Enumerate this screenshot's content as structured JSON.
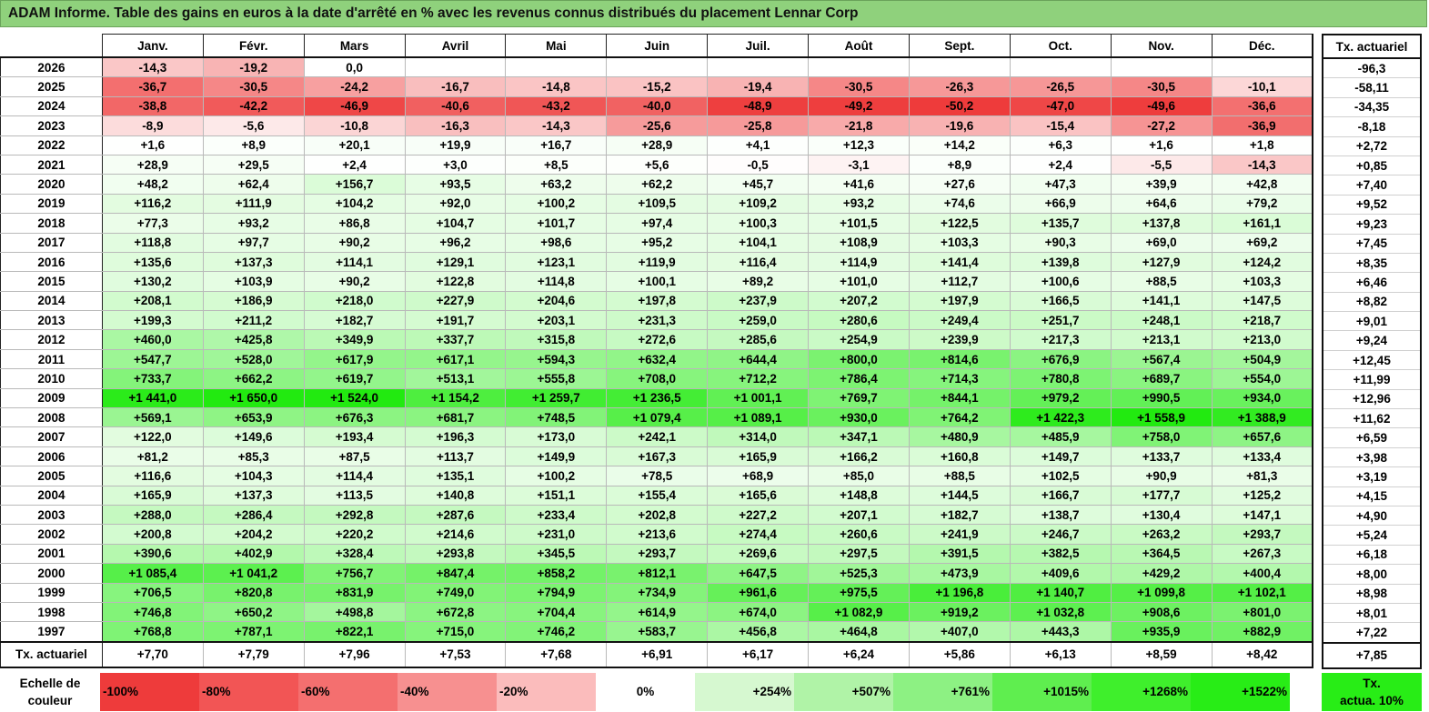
{
  "title": "ADAM Informe. Table des gains en euros à la date d'arrêté en % avec les revenus connus distribués du placement Lennar Corp",
  "months": [
    "Janv.",
    "Févr.",
    "Mars",
    "Avril",
    "Mai",
    "Juin",
    "Juil.",
    "Août",
    "Sept.",
    "Oct.",
    "Nov.",
    "Déc."
  ],
  "side_header": "Tx. actuariel",
  "rows": [
    {
      "year": "2026",
      "values": [
        "-14,3",
        "-19,2",
        "0,0",
        "",
        "",
        "",
        "",
        "",
        "",
        "",
        "",
        ""
      ],
      "tx": "-96,3"
    },
    {
      "year": "2025",
      "values": [
        "-36,7",
        "-30,5",
        "-24,2",
        "-16,7",
        "-14,8",
        "-15,2",
        "-19,4",
        "-30,5",
        "-26,3",
        "-26,5",
        "-30,5",
        "-10,1"
      ],
      "tx": "-58,11"
    },
    {
      "year": "2024",
      "values": [
        "-38,8",
        "-42,2",
        "-46,9",
        "-40,6",
        "-43,2",
        "-40,0",
        "-48,9",
        "-49,2",
        "-50,2",
        "-47,0",
        "-49,6",
        "-36,6"
      ],
      "tx": "-34,35"
    },
    {
      "year": "2023",
      "values": [
        "-8,9",
        "-5,6",
        "-10,8",
        "-16,3",
        "-14,3",
        "-25,6",
        "-25,8",
        "-21,8",
        "-19,6",
        "-15,4",
        "-27,2",
        "-36,9"
      ],
      "tx": "-8,18"
    },
    {
      "year": "2022",
      "values": [
        "+1,6",
        "+8,9",
        "+20,1",
        "+19,9",
        "+16,7",
        "+28,9",
        "+4,1",
        "+12,3",
        "+14,2",
        "+6,3",
        "+1,6",
        "+1,8"
      ],
      "tx": "+2,72"
    },
    {
      "year": "2021",
      "values": [
        "+28,9",
        "+29,5",
        "+2,4",
        "+3,0",
        "+8,5",
        "+5,6",
        "-0,5",
        "-3,1",
        "+8,9",
        "+2,4",
        "-5,5",
        "-14,3"
      ],
      "tx": "+0,85"
    },
    {
      "year": "2020",
      "values": [
        "+48,2",
        "+62,4",
        "+156,7",
        "+93,5",
        "+63,2",
        "+62,2",
        "+45,7",
        "+41,6",
        "+27,6",
        "+47,3",
        "+39,9",
        "+42,8"
      ],
      "tx": "+7,40"
    },
    {
      "year": "2019",
      "values": [
        "+116,2",
        "+111,9",
        "+104,2",
        "+92,0",
        "+100,2",
        "+109,5",
        "+109,2",
        "+93,2",
        "+74,6",
        "+66,9",
        "+64,6",
        "+79,2"
      ],
      "tx": "+9,52"
    },
    {
      "year": "2018",
      "values": [
        "+77,3",
        "+93,2",
        "+86,8",
        "+104,7",
        "+101,7",
        "+97,4",
        "+100,3",
        "+101,5",
        "+122,5",
        "+135,7",
        "+137,8",
        "+161,1"
      ],
      "tx": "+9,23"
    },
    {
      "year": "2017",
      "values": [
        "+118,8",
        "+97,7",
        "+90,2",
        "+96,2",
        "+98,6",
        "+95,2",
        "+104,1",
        "+108,9",
        "+103,3",
        "+90,3",
        "+69,0",
        "+69,2"
      ],
      "tx": "+7,45"
    },
    {
      "year": "2016",
      "values": [
        "+135,6",
        "+137,3",
        "+114,1",
        "+129,1",
        "+123,1",
        "+119,9",
        "+116,4",
        "+114,9",
        "+141,4",
        "+139,8",
        "+127,9",
        "+124,2"
      ],
      "tx": "+8,35"
    },
    {
      "year": "2015",
      "values": [
        "+130,2",
        "+103,9",
        "+90,2",
        "+122,8",
        "+114,8",
        "+100,1",
        "+89,2",
        "+101,0",
        "+112,7",
        "+100,6",
        "+88,5",
        "+103,3"
      ],
      "tx": "+6,46"
    },
    {
      "year": "2014",
      "values": [
        "+208,1",
        "+186,9",
        "+218,0",
        "+227,9",
        "+204,6",
        "+197,8",
        "+237,9",
        "+207,2",
        "+197,9",
        "+166,5",
        "+141,1",
        "+147,5"
      ],
      "tx": "+8,82"
    },
    {
      "year": "2013",
      "values": [
        "+199,3",
        "+211,2",
        "+182,7",
        "+191,7",
        "+203,1",
        "+231,3",
        "+259,0",
        "+280,6",
        "+249,4",
        "+251,7",
        "+248,1",
        "+218,7"
      ],
      "tx": "+9,01"
    },
    {
      "year": "2012",
      "values": [
        "+460,0",
        "+425,8",
        "+349,9",
        "+337,7",
        "+315,8",
        "+272,6",
        "+285,6",
        "+254,9",
        "+239,9",
        "+217,3",
        "+213,1",
        "+213,0"
      ],
      "tx": "+9,24"
    },
    {
      "year": "2011",
      "values": [
        "+547,7",
        "+528,0",
        "+617,9",
        "+617,1",
        "+594,3",
        "+632,4",
        "+644,4",
        "+800,0",
        "+814,6",
        "+676,9",
        "+567,4",
        "+504,9"
      ],
      "tx": "+12,45"
    },
    {
      "year": "2010",
      "values": [
        "+733,7",
        "+662,2",
        "+619,7",
        "+513,1",
        "+555,8",
        "+708,0",
        "+712,2",
        "+786,4",
        "+714,3",
        "+780,8",
        "+689,7",
        "+554,0"
      ],
      "tx": "+11,99"
    },
    {
      "year": "2009",
      "values": [
        "+1 441,0",
        "+1 650,0",
        "+1 524,0",
        "+1 154,2",
        "+1 259,7",
        "+1 236,5",
        "+1 001,1",
        "+769,7",
        "+844,1",
        "+979,2",
        "+990,5",
        "+934,0"
      ],
      "tx": "+12,96"
    },
    {
      "year": "2008",
      "values": [
        "+569,1",
        "+653,9",
        "+676,3",
        "+681,7",
        "+748,5",
        "+1 079,4",
        "+1 089,1",
        "+930,0",
        "+764,2",
        "+1 422,3",
        "+1 558,9",
        "+1 388,9"
      ],
      "tx": "+11,62"
    },
    {
      "year": "2007",
      "values": [
        "+122,0",
        "+149,6",
        "+193,4",
        "+196,3",
        "+173,0",
        "+242,1",
        "+314,0",
        "+347,1",
        "+480,9",
        "+485,9",
        "+758,0",
        "+657,6"
      ],
      "tx": "+6,59"
    },
    {
      "year": "2006",
      "values": [
        "+81,2",
        "+85,3",
        "+87,5",
        "+113,7",
        "+149,9",
        "+167,3",
        "+165,9",
        "+166,2",
        "+160,8",
        "+149,7",
        "+133,7",
        "+133,4"
      ],
      "tx": "+3,98"
    },
    {
      "year": "2005",
      "values": [
        "+116,6",
        "+104,3",
        "+114,4",
        "+135,1",
        "+100,2",
        "+78,5",
        "+68,9",
        "+85,0",
        "+88,5",
        "+102,5",
        "+90,9",
        "+81,3"
      ],
      "tx": "+3,19"
    },
    {
      "year": "2004",
      "values": [
        "+165,9",
        "+137,3",
        "+113,5",
        "+140,8",
        "+151,1",
        "+155,4",
        "+165,6",
        "+148,8",
        "+144,5",
        "+166,7",
        "+177,7",
        "+125,2"
      ],
      "tx": "+4,15"
    },
    {
      "year": "2003",
      "values": [
        "+288,0",
        "+286,4",
        "+292,8",
        "+287,6",
        "+233,4",
        "+202,8",
        "+227,2",
        "+207,1",
        "+182,7",
        "+138,7",
        "+130,4",
        "+147,1"
      ],
      "tx": "+4,90"
    },
    {
      "year": "2002",
      "values": [
        "+200,8",
        "+204,2",
        "+220,2",
        "+214,6",
        "+231,0",
        "+213,6",
        "+274,4",
        "+260,6",
        "+241,9",
        "+246,7",
        "+263,2",
        "+293,7"
      ],
      "tx": "+5,24"
    },
    {
      "year": "2001",
      "values": [
        "+390,6",
        "+402,9",
        "+328,4",
        "+293,8",
        "+345,5",
        "+293,7",
        "+269,6",
        "+297,5",
        "+391,5",
        "+382,5",
        "+364,5",
        "+267,3"
      ],
      "tx": "+6,18"
    },
    {
      "year": "2000",
      "values": [
        "+1 085,4",
        "+1 041,2",
        "+756,7",
        "+847,4",
        "+858,2",
        "+812,1",
        "+647,5",
        "+525,3",
        "+473,9",
        "+409,6",
        "+429,2",
        "+400,4"
      ],
      "tx": "+8,00"
    },
    {
      "year": "1999",
      "values": [
        "+706,5",
        "+820,8",
        "+831,9",
        "+749,0",
        "+794,9",
        "+734,9",
        "+961,6",
        "+975,5",
        "+1 196,8",
        "+1 140,7",
        "+1 099,8",
        "+1 102,1"
      ],
      "tx": "+8,98"
    },
    {
      "year": "1998",
      "values": [
        "+746,8",
        "+650,2",
        "+498,8",
        "+672,8",
        "+704,4",
        "+614,9",
        "+674,0",
        "+1 082,9",
        "+919,2",
        "+1 032,8",
        "+908,6",
        "+801,0"
      ],
      "tx": "+8,01"
    },
    {
      "year": "1997",
      "values": [
        "+768,8",
        "+787,1",
        "+822,1",
        "+715,0",
        "+746,2",
        "+583,7",
        "+456,8",
        "+464,8",
        "+407,0",
        "+443,3",
        "+935,9",
        "+882,9"
      ],
      "tx": "+7,22"
    }
  ],
  "actuarial_row": {
    "label": "Tx. actuariel",
    "values": [
      "+7,70",
      "+7,79",
      "+7,96",
      "+7,53",
      "+7,68",
      "+6,91",
      "+6,17",
      "+6,24",
      "+5,86",
      "+6,13",
      "+8,59",
      "+8,42"
    ],
    "total": "+7,85"
  },
  "scale": {
    "label_line1": "Echelle de",
    "label_line2": "couleur",
    "swatches": [
      {
        "label": "-100%",
        "color": "#ee3b3b",
        "kind": "neg"
      },
      {
        "label": "-80%",
        "color": "#f25555",
        "kind": "neg"
      },
      {
        "label": "-60%",
        "color": "#f46f6f",
        "kind": "neg"
      },
      {
        "label": "-40%",
        "color": "#f79090",
        "kind": "neg"
      },
      {
        "label": "-20%",
        "color": "#fbbcbc",
        "kind": "neg"
      },
      {
        "label": "0%",
        "color": "#ffffff",
        "kind": "zero"
      },
      {
        "label": "+254%",
        "color": "#d6f8d0",
        "kind": "pos"
      },
      {
        "label": "+507%",
        "color": "#b0f3a7",
        "kind": "pos"
      },
      {
        "label": "+761%",
        "color": "#8df183",
        "kind": "pos"
      },
      {
        "label": "+1015%",
        "color": "#5fee4f",
        "kind": "pos"
      },
      {
        "label": "+1268%",
        "color": "#3fef2c",
        "kind": "pos"
      },
      {
        "label": "+1522%",
        "color": "#28ed16",
        "kind": "pos"
      }
    ]
  },
  "legend": {
    "line1": "Tx.",
    "line2": "actua. 10%",
    "color": "#28ed16"
  }
}
